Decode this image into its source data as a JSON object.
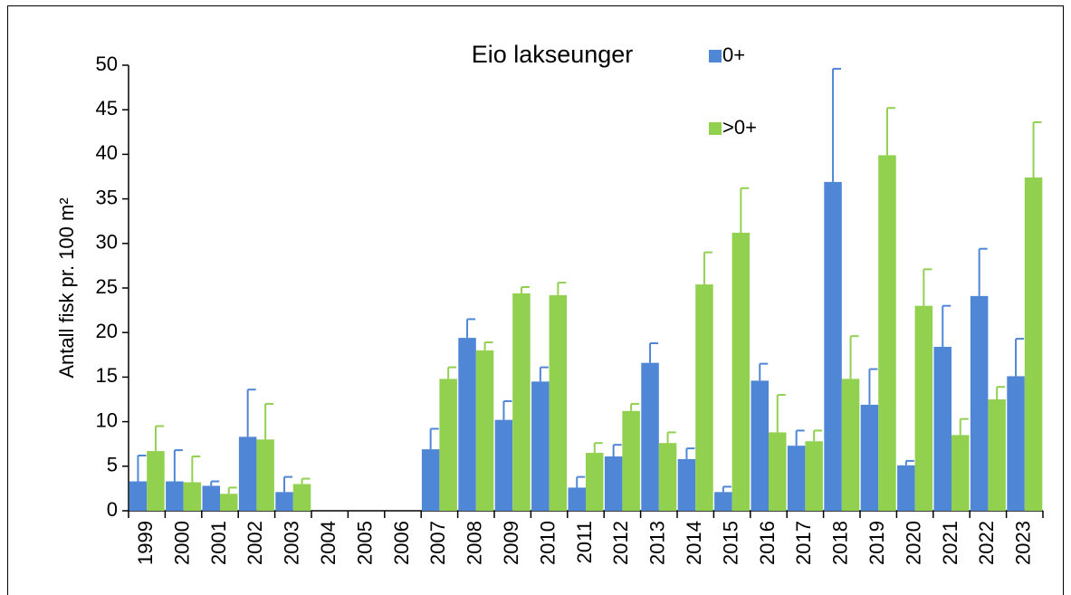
{
  "chart_data": {
    "type": "bar",
    "title": "Eio lakseunger",
    "y_label": "Antall fisk pr. 100 m²",
    "categories": [
      "1999",
      "2000",
      "2001",
      "2002",
      "2003",
      "2004",
      "2005",
      "2006",
      "2007",
      "2008",
      "2009",
      "2010",
      "2011",
      "2012",
      "2013",
      "2014",
      "2015",
      "2016",
      "2017",
      "2018",
      "2019",
      "2020",
      "2021",
      "2022",
      "2023"
    ],
    "series": [
      {
        "name": "0+",
        "color": "#4f86d6",
        "values": [
          3.3,
          3.3,
          2.8,
          8.3,
          2.1,
          null,
          null,
          null,
          6.9,
          19.4,
          10.2,
          14.5,
          2.6,
          6.1,
          16.6,
          5.8,
          2.1,
          14.6,
          7.3,
          36.9,
          11.9,
          5.1,
          18.4,
          24.1,
          15.1
        ],
        "errors": [
          2.9,
          3.5,
          0.5,
          5.3,
          1.7,
          null,
          null,
          null,
          2.3,
          2.1,
          2.1,
          1.6,
          1.2,
          1.3,
          2.2,
          1.2,
          0.6,
          1.9,
          1.7,
          12.7,
          4.0,
          0.5,
          4.6,
          5.3,
          4.2
        ]
      },
      {
        "name": ">0+",
        "color": "#92d050",
        "values": [
          6.7,
          3.2,
          1.9,
          8.0,
          3.0,
          null,
          null,
          null,
          14.8,
          18.0,
          24.4,
          24.2,
          6.5,
          11.2,
          7.6,
          25.4,
          31.2,
          8.8,
          7.8,
          14.8,
          39.9,
          23.0,
          8.5,
          12.5,
          37.4
        ],
        "errors": [
          2.8,
          2.9,
          0.7,
          4.0,
          0.6,
          null,
          null,
          null,
          1.3,
          0.9,
          0.7,
          1.4,
          1.1,
          0.8,
          1.2,
          3.6,
          5.0,
          4.2,
          1.2,
          4.8,
          5.3,
          4.1,
          1.8,
          1.4,
          6.2
        ]
      }
    ],
    "ylim": [
      0,
      50
    ],
    "yticks": [
      0,
      5,
      10,
      15,
      20,
      25,
      30,
      35,
      40,
      45,
      50
    ]
  }
}
